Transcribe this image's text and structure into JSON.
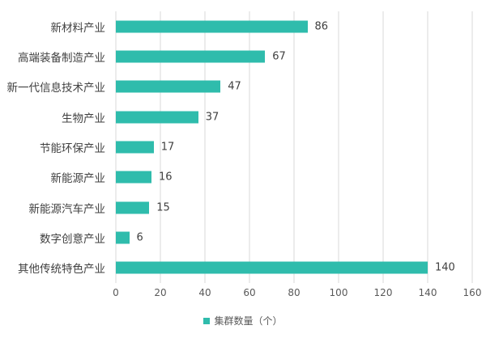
{
  "chart_data": {
    "type": "bar",
    "orientation": "horizontal",
    "title": "",
    "xlabel": "",
    "ylabel": "",
    "categories": [
      "新材料产业",
      "高端装备制造产业",
      "新一代信息技术产业",
      "生物产业",
      "节能环保产业",
      "新能源产业",
      "新能源汽车产业",
      "数字创意产业",
      "其他传统特色产业"
    ],
    "values": [
      86,
      67,
      47,
      37,
      17,
      16,
      15,
      6,
      140
    ],
    "xlim": [
      0,
      160
    ],
    "xticks": [
      0,
      20,
      40,
      60,
      80,
      100,
      120,
      140,
      160
    ],
    "grid": true,
    "data_labels": true,
    "legend": [
      {
        "label": "集群数量（个）",
        "color": "#2FBCAC"
      }
    ],
    "legend_position": "bottom"
  },
  "style": {
    "bar_color": "#2FBCAC",
    "grid_color": "#D9D9D9",
    "category_label_color": "#404040",
    "value_label_color": "#404040",
    "tick_label_color": "#595959",
    "background": "#FFFFFF"
  }
}
